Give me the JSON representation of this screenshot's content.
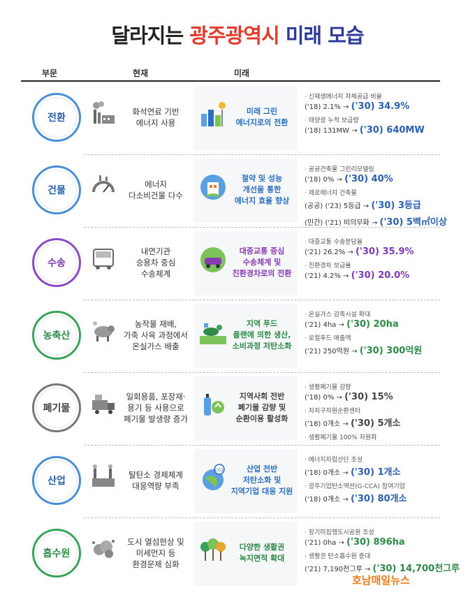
{
  "title": {
    "part1": "달라지는 ",
    "part2": "광주광역시",
    "part3": " 미래 모습"
  },
  "headers": {
    "sector": "부문",
    "current": "현재",
    "future": "미래"
  },
  "rows": [
    {
      "sector": "전환",
      "color": "#4a8fd6",
      "text_color": "#2b5fb0",
      "current": "화석연료 기반\n에너지 사용",
      "current_icon": "factory-smoke-icon",
      "future": "미래 그린\n에너지로의 전환",
      "future_icon": "solar-wind-city-icon",
      "future_color": "#2b6fc0",
      "details": [
        {
          "label": "· 신재생에너지 자체공급 비율",
          "base": "('18) 2.1% → ",
          "target": "('30) 34.9%"
        },
        {
          "label": "· 태양광 누적 보급량",
          "base": "('18) 131MW → ",
          "target": "('30) 640MW"
        }
      ]
    },
    {
      "sector": "건물",
      "color": "#4a8fd6",
      "text_color": "#2b5fb0",
      "current": "에너지\n다소비건물 다수",
      "current_icon": "energy-gauge-icon",
      "future": "절약 및 성능\n개선을 통한\n에너지 효율 향상",
      "future_icon": "green-building-icon",
      "future_color": "#2b6fc0",
      "details": [
        {
          "label": "· 공공건축물 그린리모델링",
          "base": "('18) 0% → ",
          "target": "('30) 40%"
        },
        {
          "label": "· 제로에너지 건축물",
          "base": "(공공) ('23) 5등급 → ",
          "target": "('30) 3등급"
        },
        {
          "label": "",
          "base": "(민간) ('21) 비의무화 → ",
          "target": "('30) 5백㎡이상"
        }
      ]
    },
    {
      "sector": "수송",
      "color": "#8a4cc2",
      "text_color": "#7a3bb5",
      "current": "내연기관\n승용차 중심\n수송체계",
      "current_icon": "bus-icon",
      "future": "대중교통 중심\n수송체계 및\n친환경차로의 전환",
      "future_icon": "eco-car-icon",
      "future_color": "#8a3bb5",
      "details": [
        {
          "label": "· 대중교통 수송분담율",
          "base": "('21) 26.2% → ",
          "target": "('30) 35.9%"
        },
        {
          "label": "· 친환경차 보급률",
          "base": "('21) 4.2% → ",
          "target": "('30) 20.0%"
        }
      ]
    },
    {
      "sector": "농축산",
      "color": "#3aa35a",
      "text_color": "#2e8a47",
      "current": "농작물 재배,\n가축 사육 과정에서\n온실가스 배출",
      "current_icon": "cow-icon",
      "future": "지역 푸드\n플랜에 의한 생산,\n소비과정 저탄소화",
      "future_icon": "farm-food-icon",
      "future_color": "#2e8a47",
      "details": [
        {
          "label": "· 온실가스 감축시설 확대",
          "base": "('21) 4ha → ",
          "target": "('30) 20ha"
        },
        {
          "label": "· 로컬푸드 매출액",
          "base": "('21) 250억원 → ",
          "target": "('30) 300억원"
        }
      ]
    },
    {
      "sector": "폐기물",
      "color": "#777777",
      "text_color": "#444444",
      "current": "일회용품, 포장재·\n용기 등 사용으로\n폐기물 발생량 증가",
      "current_icon": "waste-truck-icon",
      "future": "지역사회 전반\n폐기물 감량 및\n순환이용 활성화",
      "future_icon": "recycle-bottle-icon",
      "future_color": "#444444",
      "details": [
        {
          "label": "· 생활폐기물 감량",
          "base": "('18) 0% → ",
          "target": "('30) 15%"
        },
        {
          "label": "· 자치구자원순환센터",
          "base": "('18) 0개소 → ",
          "target": "('30) 5개소"
        },
        {
          "label": "· 생활폐기물 100% 자원화",
          "base": "",
          "target": ""
        }
      ]
    },
    {
      "sector": "산업",
      "color": "#4a8fd6",
      "text_color": "#2b5fb0",
      "current": "탈탄소 경제체계\n대응역량 부족",
      "current_icon": "industry-icon",
      "future": "산업 전반\n저탄소화 및\n지역기업 대응 지원",
      "future_icon": "co2-globe-icon",
      "future_color": "#2b6fc0",
      "details": [
        {
          "label": "· 에너지자립산단 조성",
          "base": "('18) 0개소 → ",
          "target": "('30) 1개소"
        },
        {
          "label": "· 광주기업탄소액션(G-CCA) 참여기업",
          "base": "('18) 0개소 → ",
          "target": "('30) 80개소"
        }
      ]
    },
    {
      "sector": "흡수원",
      "color": "#3aa35a",
      "text_color": "#2e8a47",
      "current": "도시 열섬현상 및\n미세먼지 등\n환경문제 심화",
      "current_icon": "dust-cloud-icon",
      "future": "다양한 생활권\n녹지면적 확대",
      "future_icon": "trees-icon",
      "future_color": "#2e8a47",
      "details": [
        {
          "label": "· 장기미집행도시공원 조성",
          "base": "('21) 0ha → ",
          "target": "('30) 896ha"
        },
        {
          "label": "· 생활권 탄소흡수원 증대",
          "base": "('21) 7,190천그루 → ",
          "target": "('30) 14,700천그루"
        }
      ]
    }
  ],
  "brand": {
    "part1": "호남",
    "part2": "매일뉴스"
  }
}
